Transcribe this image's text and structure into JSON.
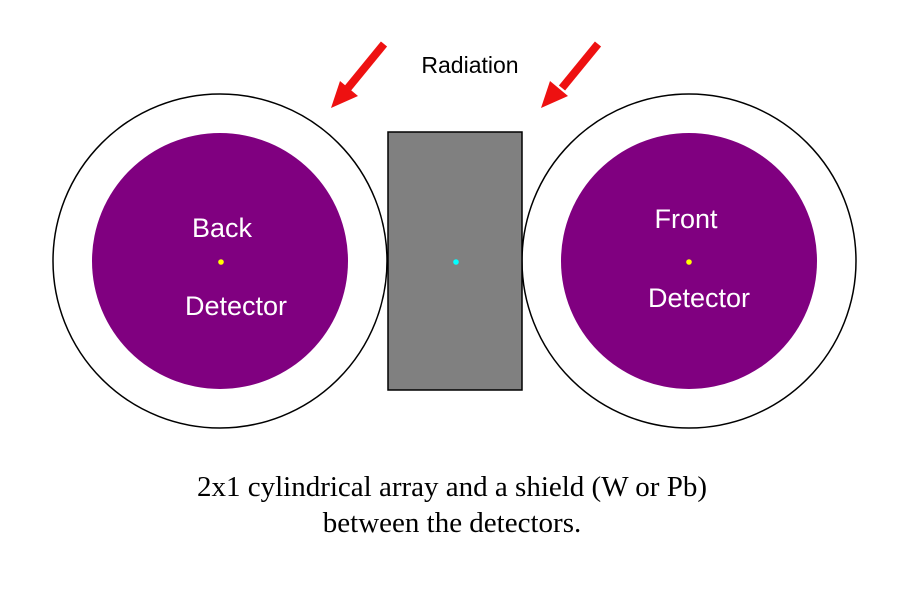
{
  "colors": {
    "detector_fill": "#800080",
    "housing_fill": "#ffffff",
    "housing_stroke": "#000000",
    "shield_fill": "#808080",
    "shield_stroke": "#000000",
    "arrow_color": "#ee1111",
    "detector_center_dot": "#ffff00",
    "shield_center_dot": "#00ffff",
    "label_color": "#ffffff"
  },
  "radiation_label": "Radiation",
  "back_detector": {
    "line1": "Back",
    "line2": "Detector"
  },
  "front_detector": {
    "line1": "Front",
    "line2": "Detector"
  },
  "caption": {
    "line1": "2x1 cylindrical array and a shield (W or Pb)",
    "line2": "between the detectors."
  },
  "icons": {
    "left_arrow": "arrow-down-left-icon",
    "right_arrow": "arrow-down-left-icon"
  }
}
